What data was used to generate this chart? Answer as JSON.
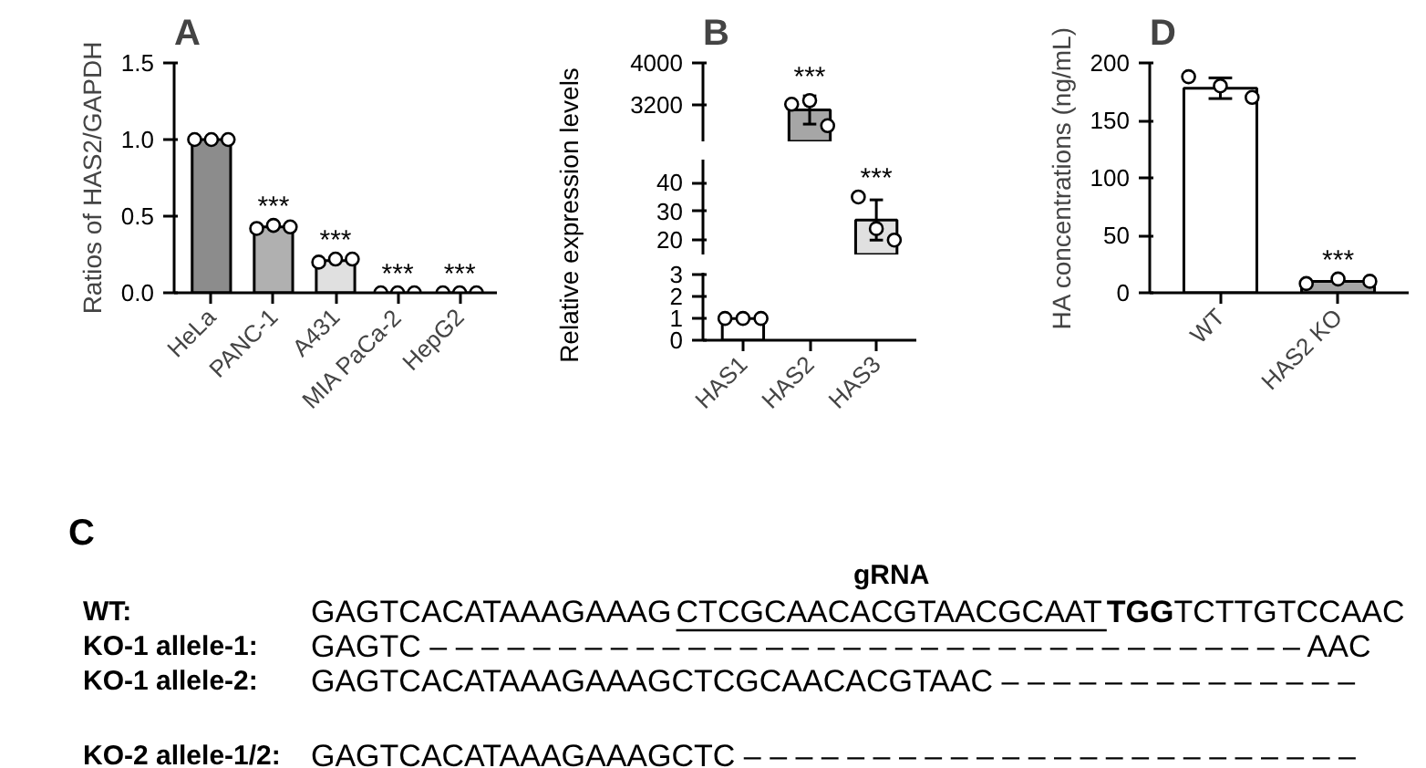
{
  "chart_data": [
    {
      "type": "bar",
      "title": "A",
      "ylabel": "Ratios of HAS2/GAPDH",
      "categories": [
        "HeLa",
        "PANC-1",
        "A431",
        "MIA PaCa-2",
        "HepG2"
      ],
      "values": [
        1.0,
        0.43,
        0.21,
        0.0,
        0.0
      ],
      "colors": [
        "#8c8c8c",
        "#b0b0b0",
        "#e0e0e0",
        "#000000",
        "#000000"
      ],
      "ylim": [
        0,
        1.5
      ],
      "yticks": [
        {
          "value": 0,
          "label": "0.0"
        },
        {
          "value": 0.5,
          "label": "0.5"
        },
        {
          "value": 1.0,
          "label": "1.0"
        },
        {
          "value": 1.5,
          "label": "1.5"
        }
      ],
      "series": [
        {
          "type": "scatter",
          "color": "#ffffff",
          "x": [
            "HeLa",
            "HeLa",
            "HeLa",
            "PANC-1",
            "PANC-1",
            "PANC-1",
            "A431",
            "A431",
            "A431",
            "MIA PaCa-2",
            "MIA PaCa-2",
            "MIA PaCa-2",
            "HepG2",
            "HepG2",
            "HepG2"
          ],
          "values": [
            1.0,
            1.0,
            1.0,
            0.42,
            0.44,
            0.43,
            0.2,
            0.22,
            0.22,
            0.0,
            0.0,
            0.0,
            0.0,
            0.0,
            0.0
          ]
        }
      ],
      "marker": "circle",
      "annotations": [
        "***",
        "***",
        "***",
        "***"
      ]
    },
    {
      "type": "bar",
      "title": "B",
      "categories": [
        "HAS1",
        "HAS2",
        "HAS3"
      ],
      "values": [
        null,
        3100,
        null
      ],
      "colors": [
        "#ffffff",
        "#a6a6a6",
        "#e0e0e0"
      ],
      "errors": [
        null,
        270,
        null
      ],
      "ylim": [
        2500,
        4000
      ],
      "yticks": [
        3200,
        4000
      ],
      "tick_labels": "y",
      "series": [
        {
          "type": "scatter",
          "color": "#ffffff",
          "x": [
            "HAS2",
            "HAS2",
            "HAS2"
          ],
          "values": [
            3210,
            3280,
            2800
          ]
        }
      ],
      "marker": "circle",
      "annotations": [
        "***"
      ]
    },
    {
      "type": "bar",
      "ylabel": "Relative expression levels",
      "categories": [
        "HAS1",
        "HAS2",
        "HAS3"
      ],
      "values": [
        null,
        null,
        27
      ],
      "colors": [
        "#ffffff",
        "#a6a6a6",
        "#e0e0e0"
      ],
      "errors": [
        null,
        null,
        7
      ],
      "ylim": [
        15,
        48
      ],
      "yticks": [
        20,
        30,
        40
      ],
      "tick_labels": "y",
      "series": [
        {
          "type": "scatter",
          "color": "#ffffff",
          "x": [
            "HAS3",
            "HAS3",
            "HAS3"
          ],
          "values": [
            35,
            24,
            20
          ]
        }
      ],
      "marker": "circle",
      "annotations": [
        "***"
      ]
    },
    {
      "type": "bar",
      "categories": [
        "HAS1",
        "HAS2",
        "HAS3"
      ],
      "values": [
        1,
        null,
        null
      ],
      "colors": [
        "#ffffff",
        "#a6a6a6",
        "#e0e0e0"
      ],
      "ylim": [
        0,
        3.1
      ],
      "yticks": [
        0,
        1,
        2,
        3
      ],
      "series": [
        {
          "type": "scatter",
          "color": "#ffffff",
          "x": [
            "HAS1",
            "HAS1",
            "HAS1"
          ],
          "values": [
            1,
            1,
            1
          ]
        }
      ],
      "marker": "circle"
    },
    {
      "type": "bar",
      "title": "D",
      "ylabel": "HA concentrations (ng/mL)",
      "categories": [
        "WT",
        "HAS2 KO"
      ],
      "values": [
        178,
        10
      ],
      "colors": [
        "#ffffff",
        "#a6a6a6"
      ],
      "errors": [
        9,
        null
      ],
      "ylim": [
        0,
        200
      ],
      "yticks": [
        0,
        50,
        100,
        150,
        200
      ],
      "series": [
        {
          "type": "scatter",
          "color": "#ffffff",
          "x": [
            "WT",
            "WT",
            "WT",
            "HAS2 KO",
            "HAS2 KO",
            "HAS2 KO"
          ],
          "values": [
            188,
            180,
            170,
            8,
            12,
            10
          ]
        }
      ],
      "marker": "circle",
      "annotations": [
        "***"
      ]
    },
    {
      "type": "other",
      "title": "C",
      "annotations": [
        "gRNA",
        "WT:",
        "GAGTCACATAAAGAAAG",
        "CTCGCAACACGTAACGCAAT",
        "TGG",
        "TCTTGTCCAAC",
        "KO-1 allele-1:",
        "GAGTC – – – – – – – – – – – – – – – – – – – – – – – – – – – – – – – – – – AAC",
        "KO-1 allele-2:",
        "GAGTCACATAAAGAAAGCTCGCAACACGTAAC – – – – – – – – – – – – – –",
        "KO-2 allele-1/2:",
        "GAGTCACATAAAGAAAGCTC – – – – – – – – – – – – – – – – – – – – – – – –"
      ]
    }
  ]
}
